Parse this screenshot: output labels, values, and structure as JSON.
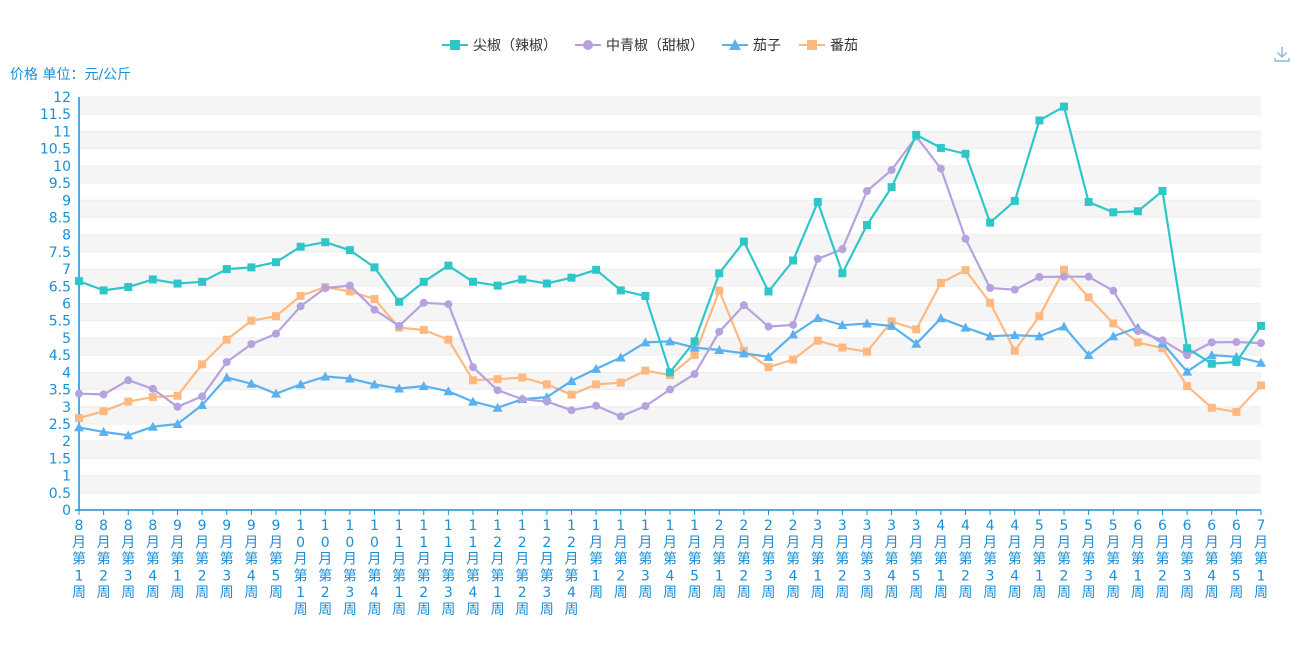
{
  "chart_data": {
    "type": "line",
    "ylabel": "价格 单位：元/公斤",
    "ylim": [
      0,
      12
    ],
    "ytick_step": 0.5,
    "grid": "horizontal-bands",
    "legend_position": "top-center",
    "categories": [
      "8月第1周",
      "8月第2周",
      "8月第3周",
      "8月第4周",
      "9月第1周",
      "9月第2周",
      "9月第3周",
      "9月第4周",
      "9月第5周",
      "10月第1周",
      "10月第2周",
      "10月第3周",
      "10月第4周",
      "11月第1周",
      "11月第2周",
      "11月第3周",
      "11月第4周",
      "12月第1周",
      "12月第2周",
      "12月第3周",
      "12月第4周",
      "1月第1周",
      "1月第2周",
      "1月第3周",
      "1月第4周",
      "1月第5周",
      "2月第1周",
      "2月第2周",
      "2月第3周",
      "2月第4周",
      "3月第1周",
      "3月第2周",
      "3月第3周",
      "3月第4周",
      "3月第5周",
      "4月第1周",
      "4月第2周",
      "4月第3周",
      "4月第4周",
      "5月第1周",
      "5月第2周",
      "5月第3周",
      "5月第4周",
      "6月第1周",
      "6月第2周",
      "6月第3周",
      "6月第4周",
      "6月第5周",
      "7月第1周"
    ],
    "series": [
      {
        "name": "尖椒（辣椒）",
        "color": "#2ec7c9",
        "marker": "square",
        "values": [
          6.65,
          6.38,
          6.48,
          6.7,
          6.58,
          6.63,
          7.0,
          7.05,
          7.2,
          7.65,
          7.78,
          7.55,
          7.05,
          6.05,
          6.63,
          7.1,
          6.63,
          6.52,
          6.7,
          6.58,
          6.75,
          6.98,
          6.38,
          6.22,
          4.0,
          4.9,
          6.88,
          7.8,
          6.35,
          7.25,
          8.95,
          6.88,
          8.28,
          9.38,
          10.9,
          10.52,
          10.35,
          8.35,
          8.98,
          11.32,
          11.72,
          8.95,
          8.65,
          8.68,
          9.27,
          4.7,
          4.25,
          4.3,
          5.35
        ]
      },
      {
        "name": "中青椒（甜椒）",
        "color": "#b6a2de",
        "marker": "circle",
        "values": [
          3.38,
          3.36,
          3.77,
          3.52,
          3.0,
          3.3,
          4.3,
          4.82,
          5.12,
          5.92,
          6.45,
          6.52,
          5.82,
          5.35,
          6.02,
          5.98,
          4.15,
          3.48,
          3.22,
          3.15,
          2.9,
          3.03,
          2.72,
          3.02,
          3.5,
          3.95,
          5.18,
          5.95,
          5.33,
          5.38,
          7.3,
          7.58,
          9.27,
          9.88,
          10.85,
          9.92,
          7.88,
          6.45,
          6.4,
          6.77,
          6.78,
          6.78,
          6.37,
          5.2,
          4.93,
          4.5,
          4.87,
          4.88,
          4.85
        ]
      },
      {
        "name": "茄子",
        "color": "#5ab1ef",
        "marker": "triangle",
        "values": [
          2.4,
          2.27,
          2.17,
          2.42,
          2.5,
          3.05,
          3.85,
          3.67,
          3.38,
          3.65,
          3.88,
          3.82,
          3.65,
          3.53,
          3.6,
          3.45,
          3.15,
          2.97,
          3.22,
          3.28,
          3.75,
          4.1,
          4.43,
          4.87,
          4.9,
          4.72,
          4.65,
          4.55,
          4.45,
          5.1,
          5.58,
          5.37,
          5.42,
          5.35,
          4.83,
          5.57,
          5.3,
          5.05,
          5.08,
          5.05,
          5.33,
          4.5,
          5.05,
          5.3,
          4.85,
          4.02,
          4.5,
          4.45,
          4.28
        ]
      },
      {
        "name": "番茄",
        "color": "#ffb980",
        "marker": "square",
        "values": [
          2.67,
          2.87,
          3.15,
          3.28,
          3.32,
          4.23,
          4.95,
          5.5,
          5.63,
          6.22,
          6.48,
          6.35,
          6.13,
          5.3,
          5.23,
          4.95,
          3.77,
          3.8,
          3.85,
          3.65,
          3.35,
          3.65,
          3.7,
          4.05,
          3.92,
          4.5,
          6.37,
          4.63,
          4.15,
          4.37,
          4.92,
          4.72,
          4.6,
          5.48,
          5.25,
          6.6,
          6.97,
          6.02,
          4.63,
          5.63,
          6.98,
          6.18,
          5.42,
          4.87,
          4.7,
          3.6,
          2.97,
          2.85,
          3.62
        ]
      }
    ]
  }
}
